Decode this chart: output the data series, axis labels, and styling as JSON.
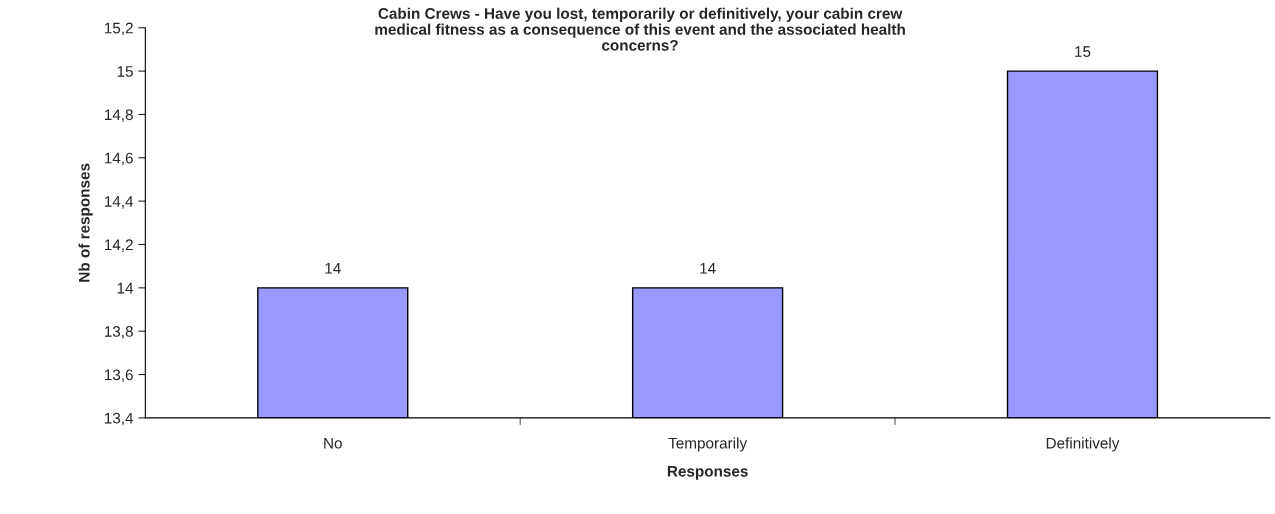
{
  "chart_data": {
    "type": "bar",
    "title": "Cabin Crews - Have you lost, temporarily or definitively, your cabin crew\nmedical fitness as a consequence of this event and the associated health\nconcerns?",
    "xlabel": "Responses",
    "ylabel": "Nb of responses",
    "categories": [
      "No",
      "Temporarily",
      "Definitively"
    ],
    "values": [
      14,
      14,
      15
    ],
    "color": "#9999ff",
    "ylim": [
      13.4,
      15.2
    ],
    "yticks": [
      {
        "value": 13.4,
        "label": "13,4"
      },
      {
        "value": 13.6,
        "label": "13,6"
      },
      {
        "value": 13.8,
        "label": "13,8"
      },
      14,
      {
        "value": 14.2,
        "label": "14,2"
      },
      {
        "value": 14.4,
        "label": "14,4"
      },
      {
        "value": 14.6,
        "label": "14,6"
      },
      {
        "value": 14.8,
        "label": "14,8"
      },
      15,
      {
        "value": 15.2,
        "label": "15,2"
      }
    ],
    "data_labels": true,
    "grid": false,
    "legend": false
  }
}
